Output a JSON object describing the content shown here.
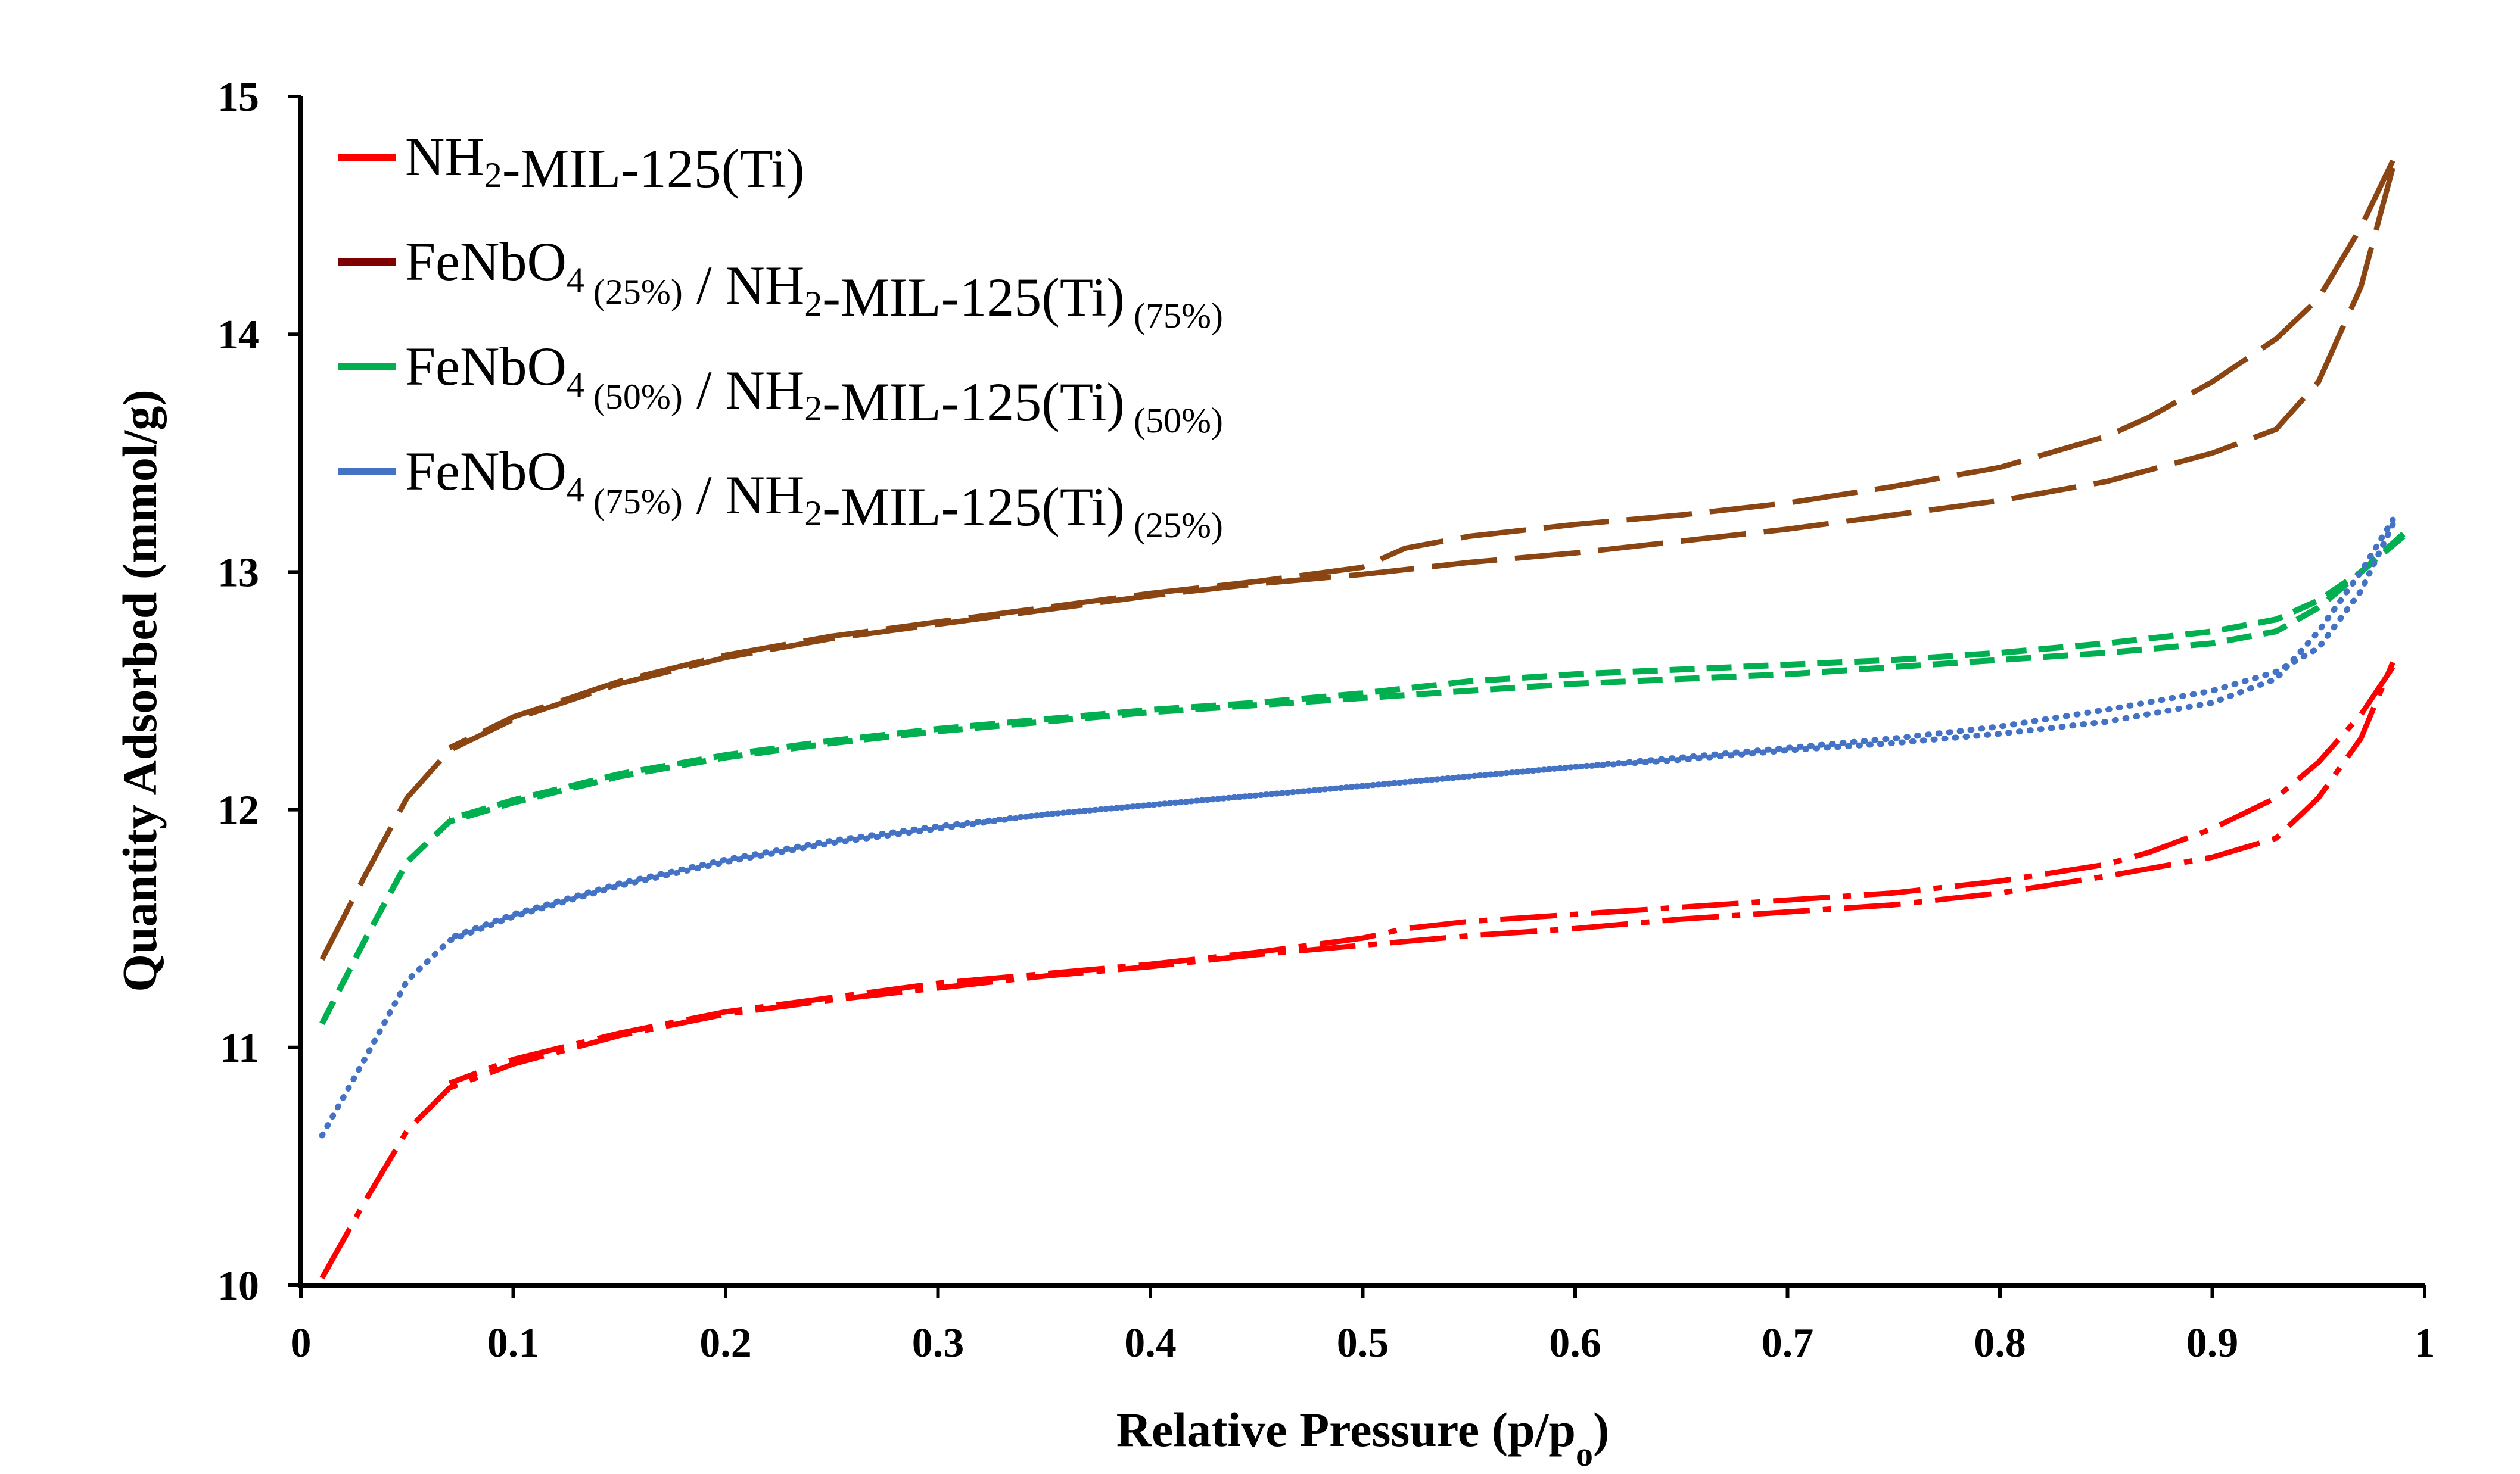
{
  "chart_data": {
    "type": "line",
    "title": "",
    "xlabel": "Relative Pressure (p/p",
    "xlabel_sub": "o",
    "xlabel_end": ")",
    "ylabel": "Quantity Adsorbed (mmol/g)",
    "xlim": [
      0,
      1
    ],
    "ylim": [
      10,
      15
    ],
    "xticks": [
      0,
      0.1,
      0.2,
      0.3,
      0.4,
      0.5,
      0.6,
      0.7,
      0.8,
      0.9,
      1
    ],
    "xtick_labels": [
      "0",
      "0.1",
      "0.2",
      "0.3",
      "0.4",
      "0.5",
      "0.6",
      "0.7",
      "0.8",
      "0.9",
      "1"
    ],
    "yticks": [
      10,
      11,
      12,
      13,
      14,
      15
    ],
    "ytick_labels": [
      "10",
      "11",
      "12",
      "13",
      "14",
      "15"
    ],
    "legend_position": "top-left",
    "series": [
      {
        "name": "NH2-MIL-125(Ti)",
        "legend_parts": [
          [
            "NH",
            ""
          ],
          [
            "2",
            "sub"
          ],
          [
            "-MIL-125(Ti)",
            ""
          ]
        ],
        "color": "#ff0000",
        "dash": "long-dash-dot",
        "adsorption": [
          [
            0.01,
            10.03
          ],
          [
            0.03,
            10.35
          ],
          [
            0.05,
            10.65
          ],
          [
            0.07,
            10.83
          ],
          [
            0.1,
            10.93
          ],
          [
            0.15,
            11.05
          ],
          [
            0.2,
            11.14
          ],
          [
            0.25,
            11.2
          ],
          [
            0.3,
            11.25
          ],
          [
            0.35,
            11.3
          ],
          [
            0.4,
            11.34
          ],
          [
            0.45,
            11.39
          ],
          [
            0.5,
            11.43
          ],
          [
            0.55,
            11.47
          ],
          [
            0.6,
            11.5
          ],
          [
            0.65,
            11.54
          ],
          [
            0.7,
            11.57
          ],
          [
            0.75,
            11.6
          ],
          [
            0.8,
            11.65
          ],
          [
            0.85,
            11.72
          ],
          [
            0.9,
            11.8
          ],
          [
            0.93,
            11.88
          ],
          [
            0.95,
            12.05
          ],
          [
            0.97,
            12.3
          ],
          [
            0.985,
            12.62
          ]
        ],
        "desorption": [
          [
            0.985,
            12.6
          ],
          [
            0.97,
            12.4
          ],
          [
            0.95,
            12.2
          ],
          [
            0.93,
            12.05
          ],
          [
            0.9,
            11.92
          ],
          [
            0.87,
            11.82
          ],
          [
            0.85,
            11.77
          ],
          [
            0.8,
            11.7
          ],
          [
            0.75,
            11.65
          ],
          [
            0.7,
            11.62
          ],
          [
            0.65,
            11.59
          ],
          [
            0.6,
            11.56
          ],
          [
            0.55,
            11.53
          ],
          [
            0.52,
            11.5
          ],
          [
            0.5,
            11.46
          ],
          [
            0.45,
            11.4
          ],
          [
            0.4,
            11.35
          ],
          [
            0.35,
            11.31
          ],
          [
            0.3,
            11.27
          ],
          [
            0.25,
            11.21
          ],
          [
            0.2,
            11.15
          ],
          [
            0.15,
            11.06
          ],
          [
            0.1,
            10.95
          ],
          [
            0.07,
            10.85
          ]
        ]
      },
      {
        "name": "FeNbO4 (25%) / NH2-MIL-125(Ti) (75%)",
        "legend_parts": [
          [
            "FeNbO",
            ""
          ],
          [
            "4",
            "sub"
          ],
          [
            " (25%)",
            "sub"
          ],
          [
            " / NH",
            ""
          ],
          [
            "2",
            "sub"
          ],
          [
            "-MIL-125(Ti)",
            ""
          ],
          [
            " (75%)",
            "sub"
          ]
        ],
        "color": "#8b4513",
        "legend_color": "#7f0000",
        "dash": "long-dash",
        "adsorption": [
          [
            0.01,
            11.37
          ],
          [
            0.03,
            11.72
          ],
          [
            0.05,
            12.05
          ],
          [
            0.07,
            12.25
          ],
          [
            0.1,
            12.38
          ],
          [
            0.15,
            12.53
          ],
          [
            0.2,
            12.64
          ],
          [
            0.25,
            12.72
          ],
          [
            0.3,
            12.78
          ],
          [
            0.35,
            12.84
          ],
          [
            0.4,
            12.9
          ],
          [
            0.45,
            12.95
          ],
          [
            0.5,
            12.99
          ],
          [
            0.55,
            13.04
          ],
          [
            0.6,
            13.08
          ],
          [
            0.65,
            13.13
          ],
          [
            0.7,
            13.18
          ],
          [
            0.75,
            13.24
          ],
          [
            0.8,
            13.3
          ],
          [
            0.85,
            13.38
          ],
          [
            0.9,
            13.5
          ],
          [
            0.93,
            13.6
          ],
          [
            0.95,
            13.8
          ],
          [
            0.97,
            14.2
          ],
          [
            0.985,
            14.7
          ]
        ],
        "desorption": [
          [
            0.985,
            14.73
          ],
          [
            0.97,
            14.45
          ],
          [
            0.95,
            14.15
          ],
          [
            0.93,
            13.98
          ],
          [
            0.9,
            13.8
          ],
          [
            0.87,
            13.65
          ],
          [
            0.85,
            13.57
          ],
          [
            0.8,
            13.44
          ],
          [
            0.75,
            13.36
          ],
          [
            0.7,
            13.29
          ],
          [
            0.65,
            13.24
          ],
          [
            0.6,
            13.2
          ],
          [
            0.55,
            13.15
          ],
          [
            0.52,
            13.1
          ],
          [
            0.5,
            13.02
          ],
          [
            0.45,
            12.96
          ],
          [
            0.4,
            12.91
          ],
          [
            0.35,
            12.85
          ],
          [
            0.3,
            12.79
          ],
          [
            0.25,
            12.73
          ],
          [
            0.2,
            12.65
          ],
          [
            0.15,
            12.54
          ],
          [
            0.1,
            12.39
          ],
          [
            0.07,
            12.26
          ]
        ]
      },
      {
        "name": "FeNbO4 (50%) / NH2-MIL-125(Ti) (50%)",
        "legend_parts": [
          [
            "FeNbO",
            ""
          ],
          [
            "4",
            "sub"
          ],
          [
            " (50%)",
            "sub"
          ],
          [
            " / NH",
            ""
          ],
          [
            "2",
            "sub"
          ],
          [
            "-MIL-125(Ti)",
            ""
          ],
          [
            " (50%)",
            "sub"
          ]
        ],
        "color": "#00b050",
        "dash": "dash",
        "adsorption": [
          [
            0.01,
            11.1
          ],
          [
            0.03,
            11.45
          ],
          [
            0.05,
            11.78
          ],
          [
            0.07,
            11.95
          ],
          [
            0.1,
            12.03
          ],
          [
            0.15,
            12.14
          ],
          [
            0.2,
            12.22
          ],
          [
            0.25,
            12.28
          ],
          [
            0.3,
            12.33
          ],
          [
            0.35,
            12.37
          ],
          [
            0.4,
            12.41
          ],
          [
            0.45,
            12.44
          ],
          [
            0.5,
            12.47
          ],
          [
            0.55,
            12.5
          ],
          [
            0.6,
            12.53
          ],
          [
            0.65,
            12.55
          ],
          [
            0.7,
            12.57
          ],
          [
            0.75,
            12.6
          ],
          [
            0.8,
            12.63
          ],
          [
            0.85,
            12.66
          ],
          [
            0.9,
            12.7
          ],
          [
            0.93,
            12.75
          ],
          [
            0.95,
            12.85
          ],
          [
            0.97,
            13
          ],
          [
            0.99,
            13.15
          ]
        ],
        "desorption": [
          [
            0.99,
            13.16
          ],
          [
            0.97,
            13.0
          ],
          [
            0.95,
            12.88
          ],
          [
            0.93,
            12.8
          ],
          [
            0.9,
            12.75
          ],
          [
            0.85,
            12.7
          ],
          [
            0.8,
            12.66
          ],
          [
            0.75,
            12.63
          ],
          [
            0.7,
            12.61
          ],
          [
            0.65,
            12.59
          ],
          [
            0.6,
            12.57
          ],
          [
            0.55,
            12.54
          ],
          [
            0.5,
            12.49
          ],
          [
            0.45,
            12.45
          ],
          [
            0.4,
            12.42
          ],
          [
            0.35,
            12.38
          ],
          [
            0.3,
            12.34
          ],
          [
            0.25,
            12.29
          ],
          [
            0.2,
            12.23
          ],
          [
            0.15,
            12.15
          ],
          [
            0.1,
            12.04
          ],
          [
            0.07,
            11.96
          ]
        ]
      },
      {
        "name": "FeNbO4 (75%) / NH2-MIL-125(Ti) (25%)",
        "legend_parts": [
          [
            "FeNbO",
            ""
          ],
          [
            "4",
            "sub"
          ],
          [
            " (75%)",
            "sub"
          ],
          [
            " / NH",
            ""
          ],
          [
            "2",
            "sub"
          ],
          [
            "-MIL-125(Ti)",
            ""
          ],
          [
            " (25%)",
            "sub"
          ]
        ],
        "color": "#4472c4",
        "dash": "dot",
        "adsorption": [
          [
            0.01,
            10.63
          ],
          [
            0.03,
            10.95
          ],
          [
            0.05,
            11.28
          ],
          [
            0.07,
            11.45
          ],
          [
            0.1,
            11.55
          ],
          [
            0.15,
            11.68
          ],
          [
            0.2,
            11.78
          ],
          [
            0.25,
            11.86
          ],
          [
            0.3,
            11.92
          ],
          [
            0.35,
            11.98
          ],
          [
            0.4,
            12.02
          ],
          [
            0.45,
            12.06
          ],
          [
            0.5,
            12.1
          ],
          [
            0.55,
            12.14
          ],
          [
            0.6,
            12.18
          ],
          [
            0.65,
            12.21
          ],
          [
            0.7,
            12.25
          ],
          [
            0.75,
            12.28
          ],
          [
            0.8,
            12.32
          ],
          [
            0.85,
            12.37
          ],
          [
            0.9,
            12.45
          ],
          [
            0.93,
            12.55
          ],
          [
            0.95,
            12.75
          ],
          [
            0.97,
            13
          ],
          [
            0.985,
            13.22
          ]
        ],
        "desorption": [
          [
            0.985,
            13.2
          ],
          [
            0.97,
            12.92
          ],
          [
            0.95,
            12.68
          ],
          [
            0.93,
            12.58
          ],
          [
            0.9,
            12.5
          ],
          [
            0.85,
            12.42
          ],
          [
            0.8,
            12.35
          ],
          [
            0.75,
            12.3
          ],
          [
            0.7,
            12.26
          ],
          [
            0.65,
            12.22
          ],
          [
            0.6,
            12.18
          ],
          [
            0.55,
            12.14
          ],
          [
            0.5,
            12.1
          ],
          [
            0.45,
            12.06
          ],
          [
            0.4,
            12.02
          ],
          [
            0.35,
            11.98
          ],
          [
            0.3,
            11.93
          ],
          [
            0.25,
            11.87
          ],
          [
            0.2,
            11.79
          ],
          [
            0.15,
            11.69
          ],
          [
            0.1,
            11.56
          ],
          [
            0.07,
            11.46
          ]
        ]
      }
    ]
  }
}
